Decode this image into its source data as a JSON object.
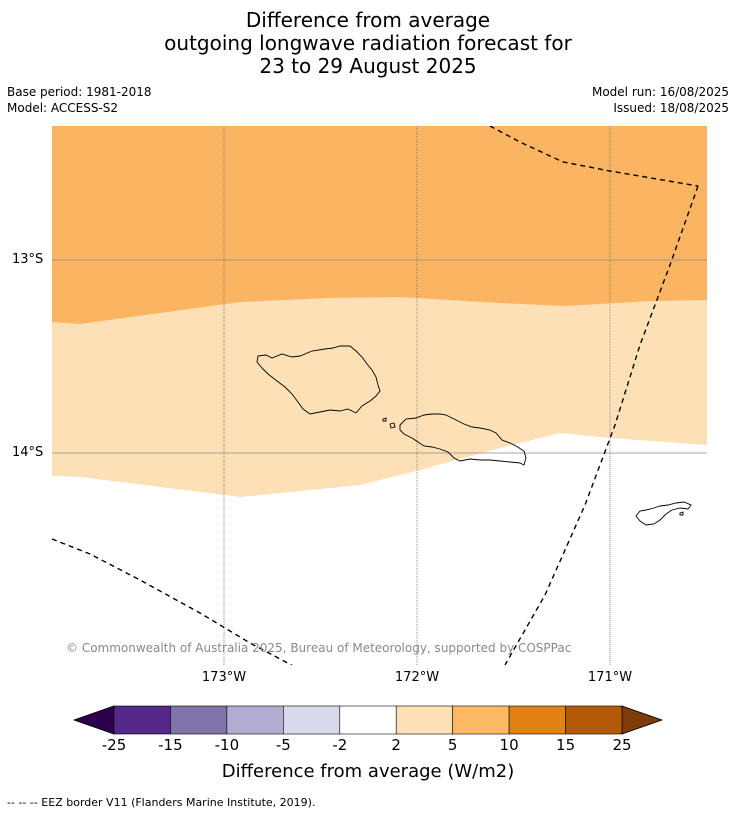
{
  "title": {
    "line1": "Difference from average",
    "line2": "outgoing longwave radiation forecast for",
    "line3": "23 to 29 August 2025"
  },
  "meta": {
    "base_period": "Base period: 1981-2018",
    "model": "Model: ACCESS-S2",
    "model_run": "Model run: 16/08/2025",
    "issued": "Issued: 18/08/2025"
  },
  "map": {
    "lat_labels": [
      "13°S",
      "14°S"
    ],
    "lon_labels": [
      "173°W",
      "172°W",
      "171°W"
    ],
    "copyright": "© Commonwealth of Australia 2025, Bureau of Meteorology, supported by COSPPac",
    "fill_colors": {
      "band_5_10": "#fbb462",
      "band_2_5": "#fde0b6",
      "band_below_2": "#ffffff"
    }
  },
  "colorbar": {
    "labels": [
      "-25",
      "-15",
      "-10",
      "-5",
      "-2",
      "2",
      "5",
      "10",
      "15",
      "25"
    ],
    "colors": [
      "#2d004b",
      "#542788",
      "#8073ac",
      "#b2abd2",
      "#d8daeb",
      "#ffffff",
      "#fee0b6",
      "#fdb863",
      "#e08214",
      "#b35806",
      "#7f3b08"
    ],
    "title": "Difference from average (W/m2)"
  },
  "footnote": "--  --  -- EEZ border V11 (Flanders Marine Institute, 2019)."
}
